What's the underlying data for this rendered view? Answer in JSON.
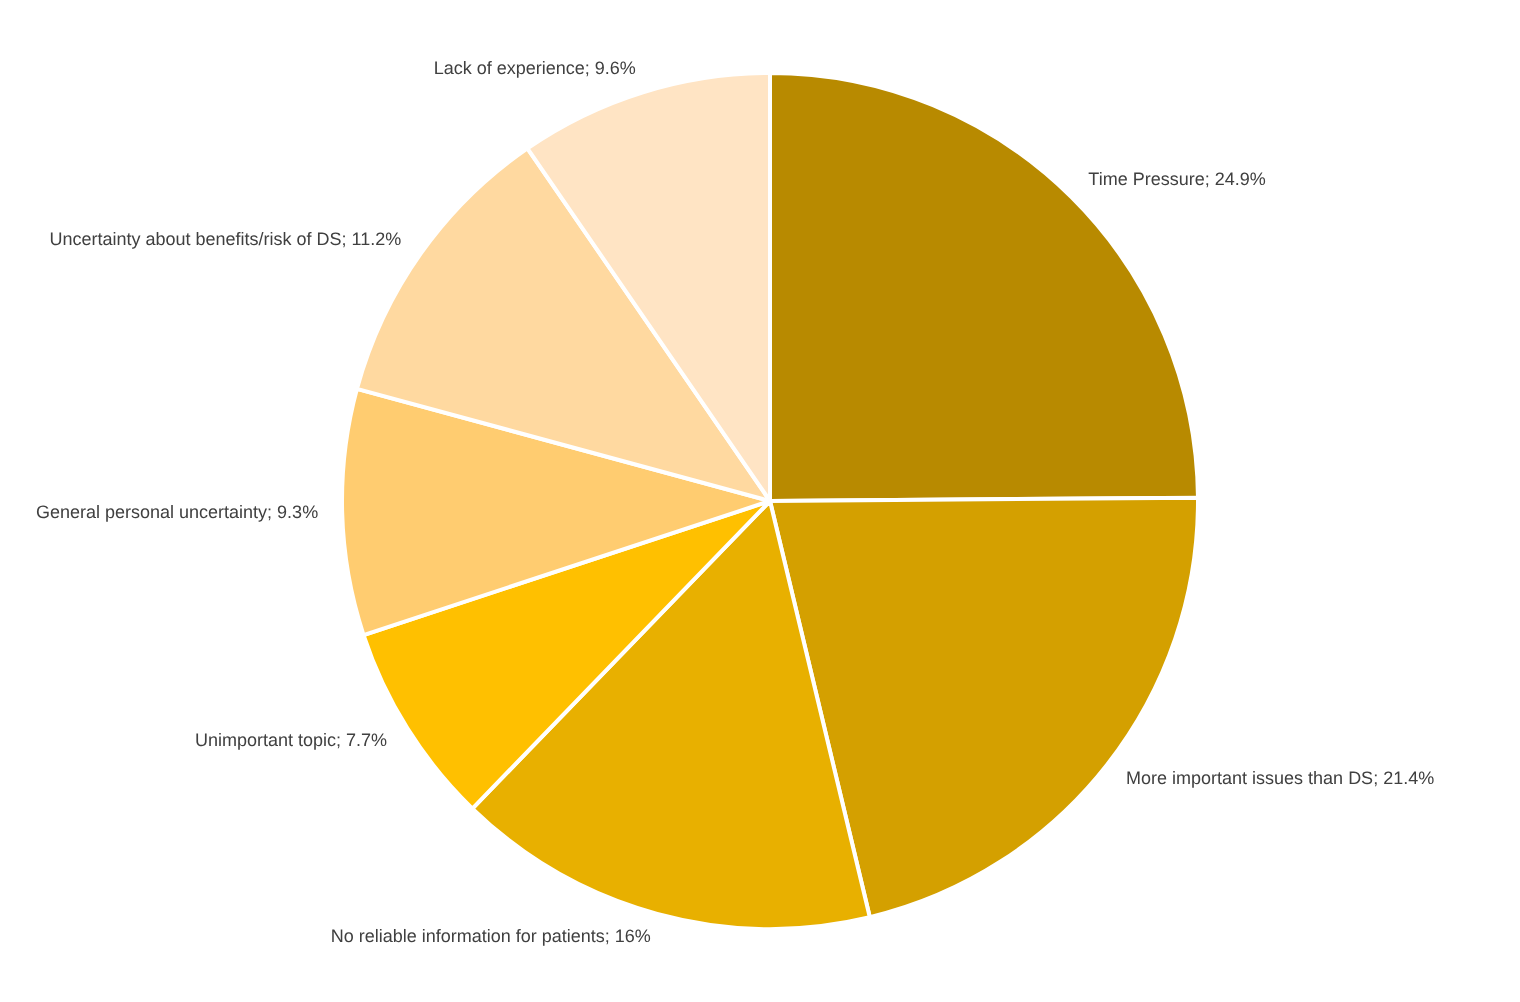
{
  "chart_data": {
    "type": "pie",
    "categories": [
      "Time Pressure",
      "More important issues than DS",
      "No reliable information for patients",
      "Unimportant topic",
      "General personal uncertainty",
      "Uncertainty about benefits/risk of DS",
      "Lack of experience"
    ],
    "values": [
      24.9,
      21.4,
      16,
      7.7,
      9.3,
      11.2,
      9.6
    ],
    "value_labels": [
      "24.9%",
      "21.4%",
      "16%",
      "7.7%",
      "9.3%",
      "11.2%",
      "9.6%"
    ],
    "colors": [
      "#b88a00",
      "#d4a000",
      "#e8b000",
      "#ffc000",
      "#ffcc70",
      "#ffd9a0",
      "#ffe4c4"
    ],
    "legend": false
  }
}
